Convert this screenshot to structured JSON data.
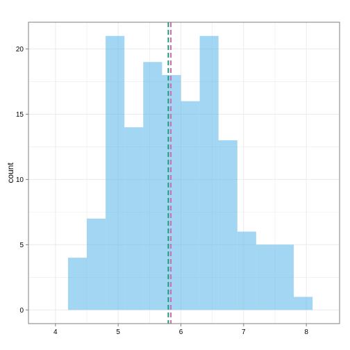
{
  "chart_data": {
    "type": "bar",
    "subtype": "histogram",
    "xlabel": "",
    "ylabel": "count",
    "xlim": [
      3.57,
      8.53
    ],
    "ylim": [
      -1.05,
      22.05
    ],
    "x_ticks": [
      4,
      5,
      6,
      7,
      8
    ],
    "y_ticks": [
      0,
      5,
      10,
      15,
      20
    ],
    "x_tick_labels": [
      "4",
      "5",
      "6",
      "7",
      "8"
    ],
    "y_tick_labels": [
      "0",
      "5",
      "10",
      "15",
      "20"
    ],
    "bin_width": 0.3,
    "bins": [
      {
        "x0": 4.2,
        "x1": 4.5,
        "count": 4
      },
      {
        "x0": 4.5,
        "x1": 4.8,
        "count": 7
      },
      {
        "x0": 4.8,
        "x1": 5.1,
        "count": 21
      },
      {
        "x0": 5.1,
        "x1": 5.4,
        "count": 14
      },
      {
        "x0": 5.4,
        "x1": 5.7,
        "count": 19
      },
      {
        "x0": 5.7,
        "x1": 6.0,
        "count": 18
      },
      {
        "x0": 6.0,
        "x1": 6.3,
        "count": 16
      },
      {
        "x0": 6.3,
        "x1": 6.6,
        "count": 21
      },
      {
        "x0": 6.6,
        "x1": 6.9,
        "count": 13
      },
      {
        "x0": 6.9,
        "x1": 7.2,
        "count": 6
      },
      {
        "x0": 7.2,
        "x1": 7.5,
        "count": 5
      },
      {
        "x0": 7.5,
        "x1": 7.8,
        "count": 5
      },
      {
        "x0": 7.8,
        "x1": 8.1,
        "count": 1
      }
    ],
    "reference_lines": [
      {
        "x": 5.8,
        "color": "#1B9E77",
        "style": "dashed"
      },
      {
        "x": 5.84,
        "color": "#D46BB0",
        "style": "dashed"
      }
    ],
    "bar_color": "#56B4E9",
    "bar_opacity": 0.55,
    "panel_background": "#FFFFFF",
    "grid": true,
    "grid_color": "#EBEBEB",
    "legend": "none"
  }
}
